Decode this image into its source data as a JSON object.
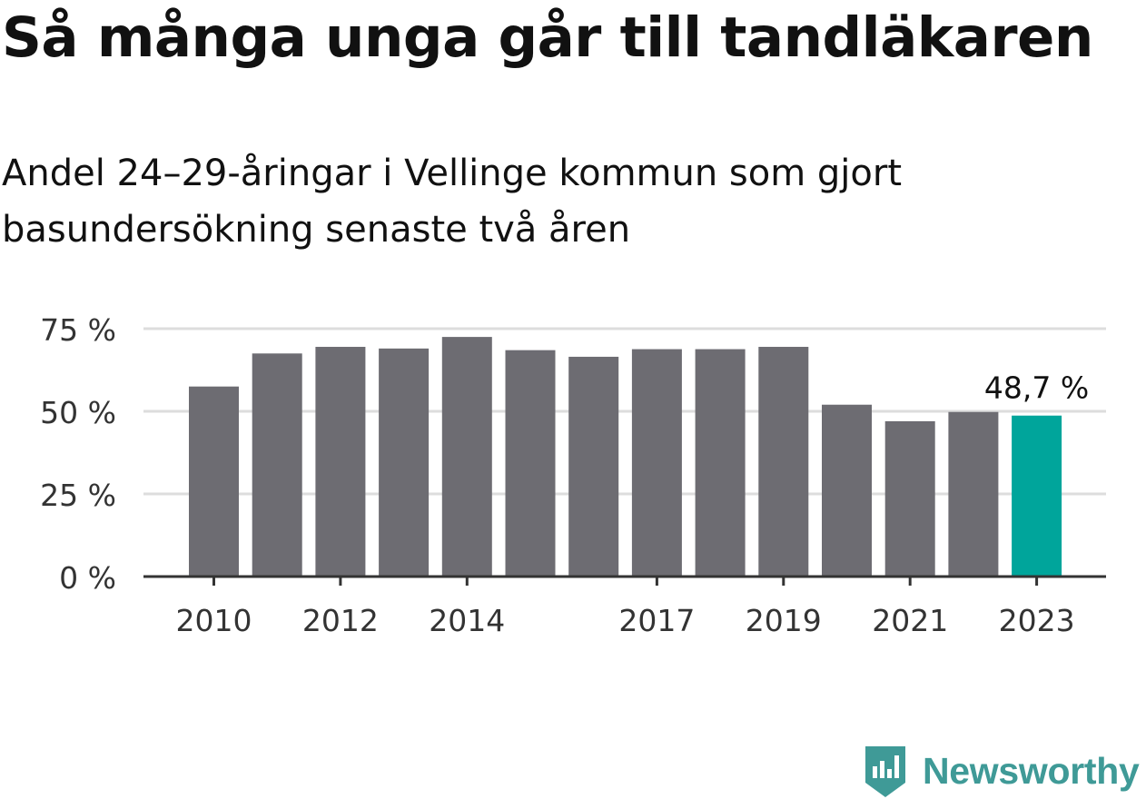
{
  "title": "Så många unga går till tandläkaren",
  "subtitle": "Andel 24–29-åringar i Vellinge kommun som gjort basundersökning senaste två åren",
  "brand": {
    "name": "Newsworthy",
    "color": "#3f9a97"
  },
  "colors": {
    "bar": "#6d6c72",
    "highlight": "#00a59b",
    "grid": "#dddddd",
    "axis": "#333333"
  },
  "chart_data": {
    "type": "bar",
    "categories": [
      "2010",
      "2011",
      "2012",
      "2013",
      "2014",
      "2015",
      "2016",
      "2017",
      "2018",
      "2019",
      "2020",
      "2021",
      "2022",
      "2023"
    ],
    "values": [
      57.5,
      67.5,
      69.5,
      69,
      72.5,
      68.5,
      66.5,
      68.8,
      68.8,
      69.5,
      52,
      47,
      49.8,
      48.7
    ],
    "highlight_index": 13,
    "annotation": {
      "index": 13,
      "text": "48,7 %"
    },
    "x_tick_labels": [
      "2010",
      "2012",
      "2014",
      "2017",
      "2019",
      "2021",
      "2023"
    ],
    "y_ticks": [
      0,
      25,
      50,
      75
    ],
    "y_tick_labels": [
      "0 %",
      "25 %",
      "50 %",
      "75 %"
    ],
    "ylim": [
      0,
      75
    ],
    "grid": true,
    "xlabel": "",
    "ylabel": ""
  }
}
